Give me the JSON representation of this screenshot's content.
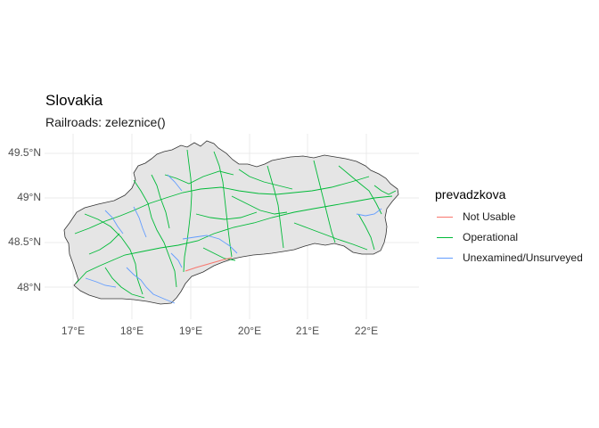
{
  "title": "Slovakia",
  "subtitle": "Railroads: zeleznice()",
  "y_ticks": [
    "49.5°N",
    "49°N",
    "48.5°N",
    "48°N"
  ],
  "x_ticks": [
    "17°E",
    "18°E",
    "19°E",
    "20°E",
    "21°E",
    "22°E"
  ],
  "legend": {
    "title": "prevadzkova",
    "items": [
      {
        "label": "Not Usable",
        "color": "#F8766D"
      },
      {
        "label": "Operational",
        "color": "#00BA38"
      },
      {
        "label": "Unexamined/Unsurveyed",
        "color": "#619CFF"
      }
    ]
  },
  "colors": {
    "country_fill": "#e5e5e5",
    "border": "#333333",
    "grid": "#ebebeb"
  }
}
